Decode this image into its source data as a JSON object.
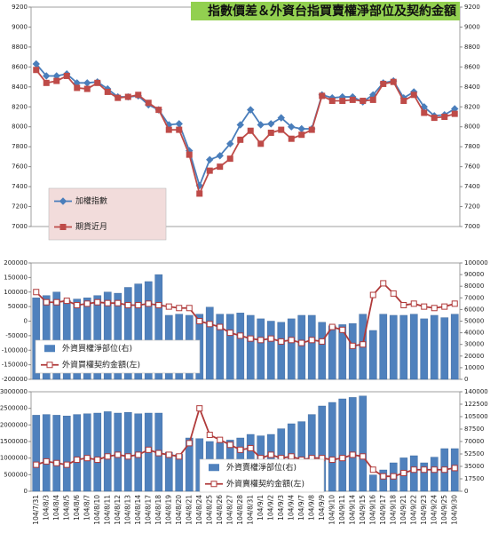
{
  "chart_data": [
    {
      "type": "combo",
      "title": "指數價差＆外資台指買賣權淨部位及契約金額",
      "title_background": "#92d050",
      "ylim": [
        7000,
        9200
      ],
      "yticks": [
        7000,
        7200,
        7400,
        7600,
        7800,
        8000,
        8200,
        8400,
        8600,
        8800,
        9000,
        9200
      ],
      "y2lim": [
        7000,
        9200
      ],
      "y2ticks": [
        7000,
        7200,
        7400,
        7600,
        7800,
        8000,
        8200,
        8400,
        8600,
        8800,
        9000,
        9200
      ],
      "legend": "lower left",
      "legend_background": "#f2dcdb",
      "series": [
        {
          "name": "加權指數",
          "type": "line",
          "color": "#4a7ebb",
          "marker": "diamond",
          "marker_fill": "#4a7ebb",
          "values": [
            8630,
            8510,
            8510,
            8530,
            8440,
            8440,
            8450,
            8380,
            8300,
            8300,
            8310,
            8220,
            8170,
            8020,
            8030,
            7760,
            7410,
            7670,
            7710,
            7830,
            8020,
            8170,
            8020,
            8030,
            8090,
            8000,
            7980,
            7980,
            8320,
            8290,
            8300,
            8300,
            8250,
            8320,
            8440,
            8460,
            8290,
            8350,
            8200,
            8110,
            8120,
            8180
          ]
        },
        {
          "name": "期貨近月",
          "type": "line",
          "color": "#be4b48",
          "marker": "square",
          "marker_fill": "#be4b48",
          "values": [
            8570,
            8440,
            8460,
            8510,
            8390,
            8380,
            8440,
            8350,
            8290,
            8300,
            8320,
            8240,
            8170,
            7970,
            7970,
            7720,
            7330,
            7560,
            7600,
            7680,
            7870,
            7960,
            7830,
            7940,
            7970,
            7880,
            7920,
            7970,
            8310,
            8260,
            8260,
            8270,
            8260,
            8270,
            8430,
            8450,
            8260,
            8320,
            8140,
            8090,
            8100,
            8130
          ]
        }
      ]
    },
    {
      "type": "combo",
      "ylim": [
        -200000,
        200000
      ],
      "yticks": [
        -200000,
        -150000,
        -100000,
        -50000,
        0,
        50000,
        100000,
        150000,
        200000
      ],
      "y2lim": [
        0,
        100000
      ],
      "y2ticks": [
        0,
        10000,
        20000,
        30000,
        40000,
        50000,
        60000,
        70000,
        80000,
        90000,
        100000
      ],
      "legend": "lower left",
      "legend_background": "#ffffff",
      "series": [
        {
          "name": "外資買權淨部位(右)",
          "type": "bar",
          "axis": "y2",
          "color": "#4f81bd",
          "values": [
            70000,
            72000,
            75000,
            68000,
            69000,
            70000,
            72000,
            75000,
            74000,
            79000,
            82000,
            84000,
            90000,
            55000,
            56000,
            55000,
            56000,
            62000,
            56000,
            56000,
            57000,
            55000,
            52000,
            50000,
            49000,
            52000,
            55000,
            55000,
            49000,
            46000,
            47000,
            48000,
            56000,
            42000,
            56000,
            55000,
            55000,
            56000,
            52000,
            55000,
            53000,
            56000
          ]
        },
        {
          "name": "外資買權契約金額(左)",
          "type": "line",
          "color": "#b03a3a",
          "marker": "square",
          "marker_fill": "#ffffff",
          "values": [
            100000,
            65000,
            65000,
            70000,
            55000,
            60000,
            65000,
            62000,
            62000,
            55000,
            55000,
            60000,
            55000,
            50000,
            45000,
            45000,
            0,
            -10000,
            -20000,
            -40000,
            -50000,
            -60000,
            -65000,
            -60000,
            -70000,
            -65000,
            -75000,
            -65000,
            -70000,
            -20000,
            -30000,
            -85000,
            -80000,
            90000,
            130000,
            95000,
            55000,
            60000,
            50000,
            45000,
            50000,
            60000
          ]
        }
      ]
    },
    {
      "type": "combo",
      "categories": [
        "104/7/31",
        "104/8/3",
        "104/8/4",
        "104/8/5",
        "104/8/6",
        "104/8/7",
        "104/8/10",
        "104/8/11",
        "104/8/12",
        "104/8/13",
        "104/8/14",
        "104/8/17",
        "104/8/18",
        "104/8/19",
        "104/8/20",
        "104/8/21",
        "104/8/24",
        "104/8/25",
        "104/8/26",
        "104/8/27",
        "104/8/28",
        "104/8/31",
        "104/9/1",
        "104/9/2",
        "104/9/3",
        "104/9/4",
        "104/9/7",
        "104/9/8",
        "104/9/9",
        "104/9/10",
        "104/9/11",
        "104/9/14",
        "104/9/15",
        "104/9/16",
        "104/9/17",
        "104/9/18",
        "104/9/21",
        "104/9/22",
        "104/9/23",
        "104/9/24",
        "104/9/25",
        "104/9/30"
      ],
      "ylim": [
        0,
        3000000
      ],
      "yticks": [
        0,
        500000,
        1000000,
        1500000,
        2000000,
        2500000,
        3000000
      ],
      "y2lim": [
        0,
        140000
      ],
      "y2ticks": [
        0,
        17500,
        35000,
        52500,
        70000,
        87500,
        105000,
        122500,
        140000
      ],
      "legend": "lower center",
      "legend_background": "#ffffff",
      "series": [
        {
          "name": "外資賣權淨部位(右)",
          "type": "bar",
          "axis": "y2",
          "color": "#4f81bd",
          "values": [
            107000,
            108000,
            107000,
            106000,
            108000,
            109000,
            110000,
            112000,
            110000,
            111000,
            109000,
            110000,
            110000,
            55000,
            52000,
            75000,
            74000,
            70000,
            68000,
            72000,
            75000,
            80000,
            78000,
            80000,
            88000,
            95000,
            98000,
            108000,
            120000,
            125000,
            130000,
            132000,
            134000,
            23000,
            30000,
            40000,
            47000,
            50000,
            40000,
            48000,
            60000,
            60000
          ]
        },
        {
          "name": "外資賣權契約金額(左)",
          "type": "line",
          "color": "#b03a3a",
          "marker": "square",
          "marker_fill": "#ffffff",
          "values": [
            800000,
            900000,
            850000,
            800000,
            950000,
            1000000,
            950000,
            1050000,
            1100000,
            1050000,
            1100000,
            1250000,
            1150000,
            1100000,
            1050000,
            1450000,
            2500000,
            1700000,
            1550000,
            1400000,
            1250000,
            1300000,
            1000000,
            1100000,
            1000000,
            1050000,
            950000,
            1000000,
            1000000,
            950000,
            1000000,
            1100000,
            1050000,
            650000,
            450000,
            450000,
            550000,
            650000,
            650000,
            650000,
            650000,
            700000
          ]
        }
      ]
    }
  ]
}
